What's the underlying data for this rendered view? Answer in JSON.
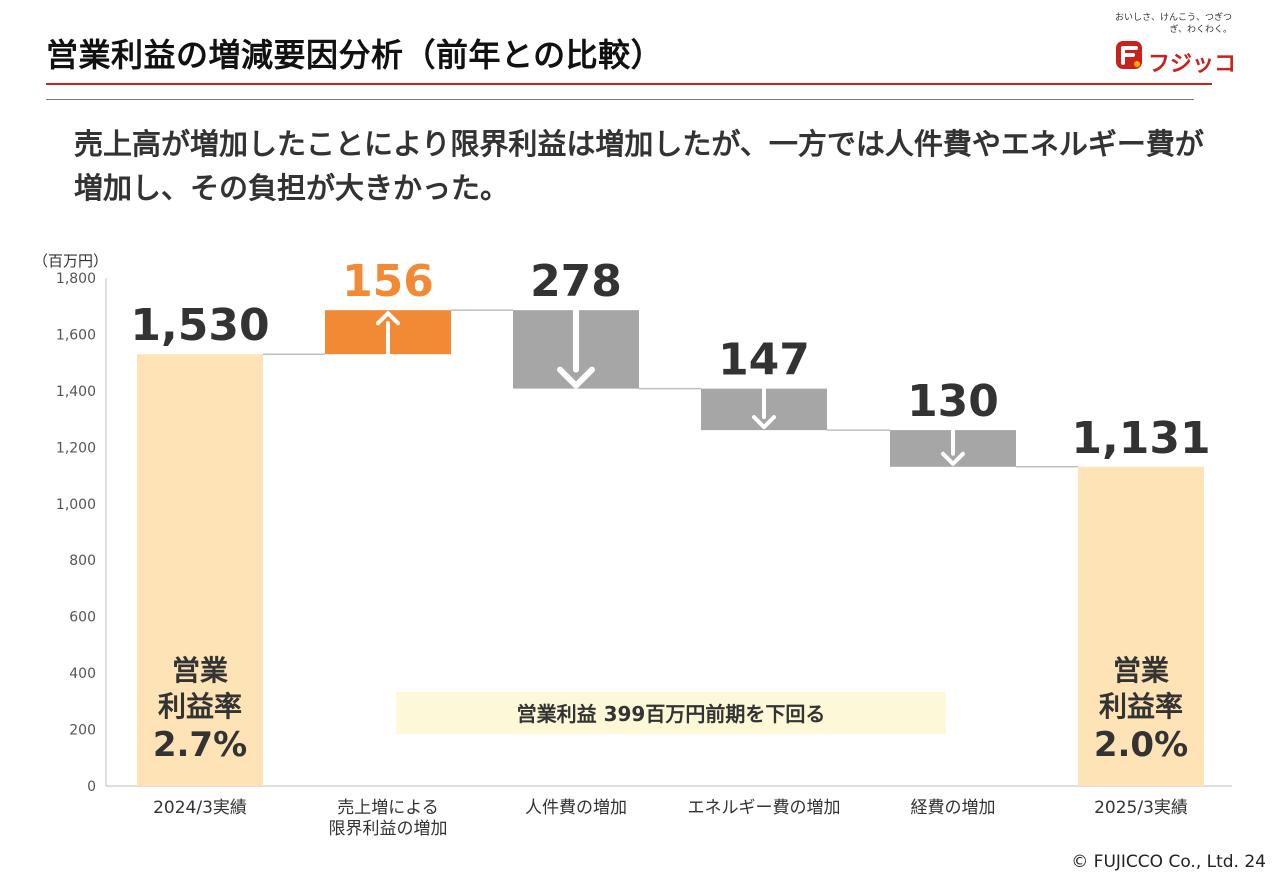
{
  "slide": {
    "title": "営業利益の増減要因分析（前年との比較）",
    "headline": "売上高が増加したことにより限界利益は増加したが、一方では人件費やエネルギー費が増加し、その負担が大きかった。",
    "unit_label": "（百万円）",
    "footer": "© FUJICCO Co., Ltd.  24"
  },
  "logo": {
    "tagline": "おいしさ、けんこう、つぎつぎ、わくわく。",
    "name": "フジッコ"
  },
  "chart_data": {
    "type": "bar",
    "subtype": "waterfall",
    "categories": [
      "2024/3実績",
      "売上増による限界利益の増加",
      "人件費の増加",
      "エネルギー費の増加",
      "経費の増加",
      "2025/3実績"
    ],
    "category_lines": [
      [
        "2024/3実績"
      ],
      [
        "売上増による",
        "限界利益の増加"
      ],
      [
        "人件費の増加"
      ],
      [
        "エネルギー費の増加"
      ],
      [
        "経費の増加"
      ],
      [
        "2025/3実績"
      ]
    ],
    "steps": [
      {
        "kind": "total",
        "value": 1530,
        "label": "1,530"
      },
      {
        "kind": "increase",
        "value": 156,
        "label": "156"
      },
      {
        "kind": "decrease",
        "value": 278,
        "label": "278"
      },
      {
        "kind": "decrease",
        "value": 147,
        "label": "147"
      },
      {
        "kind": "decrease",
        "value": 130,
        "label": "130"
      },
      {
        "kind": "total",
        "value": 1131,
        "label": "1,131"
      }
    ],
    "ylim": [
      0,
      1800
    ],
    "yticks": [
      0,
      200,
      400,
      600,
      800,
      1000,
      1200,
      1400,
      1600,
      1800
    ],
    "ytick_labels": [
      "0",
      "200",
      "400",
      "600",
      "800",
      "1,000",
      "1,200",
      "1,400",
      "1,600",
      "1,800"
    ],
    "inbar_labels": [
      {
        "index": 0,
        "lines": [
          "営業",
          "利益率",
          "2.7%"
        ]
      },
      {
        "index": 5,
        "lines": [
          "営業",
          "利益率",
          "2.0%"
        ]
      }
    ],
    "annotation": "営業利益  399百万円前期を下回る",
    "colors": {
      "total": "#fde3b5",
      "increase": "#f28a35",
      "decrease": "#a6a6a6",
      "increase_label": "#f28a35",
      "value_label": "#333333",
      "arrow": "#ffffff",
      "connector": "#bfbfbf",
      "annotation_bg": "#fdf8d8"
    }
  }
}
